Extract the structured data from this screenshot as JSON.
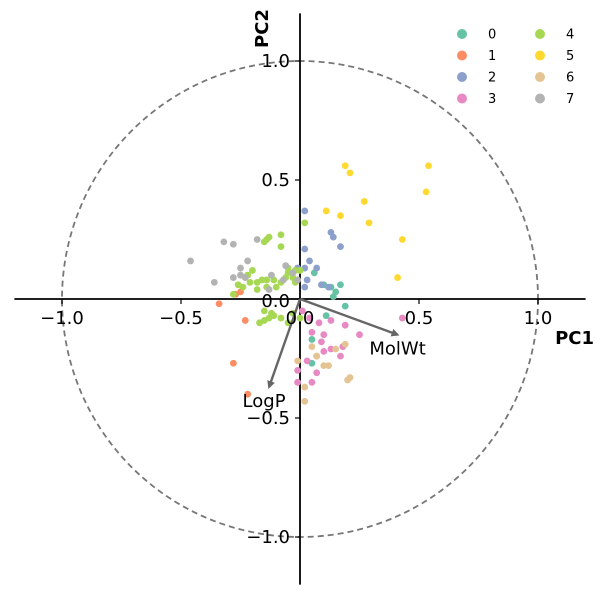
{
  "chart_data": {
    "type": "scatter",
    "xlabel": "PC1",
    "ylabel": "PC2",
    "xlim": [
      -1.2,
      1.2
    ],
    "ylim": [
      -1.2,
      1.2
    ],
    "xticks": [
      -1.0,
      -0.5,
      0.0,
      0.5,
      1.0
    ],
    "yticks": [
      -1.0,
      -0.5,
      0.0,
      0.5,
      1.0
    ],
    "x_tick_labels": [
      "−1.0",
      "−0.5",
      "0.0",
      "0.5",
      "1.0"
    ],
    "y_tick_labels": [
      "−1.0",
      "−0.5",
      "0.0",
      "0.5",
      "1.0"
    ],
    "unit_circle": true,
    "grid": false,
    "legend_position": "top-right",
    "loadings": [
      {
        "name": "MolWt",
        "x": 0.41,
        "y": -0.15
      },
      {
        "name": "LogP",
        "x": -0.13,
        "y": -0.37
      }
    ],
    "series": [
      {
        "name": "0",
        "color": "#66c2a5",
        "points": [
          [
            0.17,
            0.06
          ],
          [
            0.13,
            0.05
          ],
          [
            0.15,
            0.03
          ],
          [
            0.1,
            0.06
          ],
          [
            0.06,
            0.11
          ],
          [
            0.14,
            0.01
          ],
          [
            0.19,
            -0.03
          ],
          [
            0.05,
            -0.17
          ],
          [
            0.05,
            -0.27
          ],
          [
            0.11,
            -0.07
          ]
        ]
      },
      {
        "name": "1",
        "color": "#fc8d62",
        "points": [
          [
            -0.34,
            -0.02
          ],
          [
            -0.27,
            0.02
          ],
          [
            -0.25,
            0.03
          ],
          [
            -0.23,
            -0.09
          ],
          [
            -0.28,
            -0.27
          ],
          [
            -0.22,
            -0.4
          ]
        ]
      },
      {
        "name": "2",
        "color": "#8da0cb",
        "points": [
          [
            0.02,
            0.37
          ],
          [
            0.02,
            0.21
          ],
          [
            0.04,
            0.16
          ],
          [
            0.07,
            0.13
          ],
          [
            0.09,
            0.06
          ],
          [
            0.12,
            0.05
          ],
          [
            0.13,
            0.28
          ],
          [
            0.14,
            0.26
          ],
          [
            0.17,
            0.22
          ],
          [
            0.02,
            0.13
          ],
          [
            0.03,
            0.08
          ],
          [
            -0.01,
            0.13
          ],
          [
            0.02,
            0.05
          ]
        ]
      },
      {
        "name": "3",
        "color": "#e78ac3",
        "points": [
          [
            0.01,
            -0.05
          ],
          [
            0.04,
            -0.08
          ],
          [
            0.08,
            -0.1
          ],
          [
            0.13,
            -0.09
          ],
          [
            0.19,
            -0.11
          ],
          [
            0.05,
            -0.14
          ],
          [
            0.1,
            -0.15
          ],
          [
            0.1,
            -0.22
          ],
          [
            0.13,
            -0.21
          ],
          [
            0.17,
            -0.24
          ],
          [
            0.18,
            -0.2
          ],
          [
            0.03,
            -0.26
          ],
          [
            -0.01,
            -0.3
          ],
          [
            0.07,
            -0.31
          ],
          [
            -0.01,
            -0.35
          ],
          [
            0.05,
            -0.35
          ],
          [
            0.25,
            -0.15
          ],
          [
            0.43,
            -0.08
          ],
          [
            0.07,
            -0.24
          ],
          [
            0.09,
            -0.18
          ]
        ]
      },
      {
        "name": "4",
        "color": "#a6d854",
        "points": [
          [
            -0.15,
            0.24
          ],
          [
            -0.14,
            0.25
          ],
          [
            -0.13,
            0.26
          ],
          [
            -0.08,
            0.27
          ],
          [
            -0.08,
            0.22
          ],
          [
            -0.05,
            0.13
          ],
          [
            -0.05,
            0.11
          ],
          [
            -0.02,
            0.12
          ],
          [
            0.0,
            0.12
          ],
          [
            0.02,
            0.32
          ],
          [
            -0.02,
            0.07
          ],
          [
            -0.06,
            0.09
          ],
          [
            -0.11,
            0.08
          ],
          [
            -0.14,
            0.08
          ],
          [
            -0.16,
            0.08
          ],
          [
            -0.18,
            0.07
          ],
          [
            -0.21,
            0.07
          ],
          [
            -0.26,
            0.06
          ],
          [
            -0.28,
            0.02
          ],
          [
            -0.24,
            0.05
          ],
          [
            -0.18,
            0.04
          ],
          [
            -0.14,
            0.05
          ],
          [
            -0.1,
            0.05
          ],
          [
            -0.08,
            0.07
          ],
          [
            -0.03,
            0.09
          ],
          [
            -0.15,
            -0.05
          ],
          [
            -0.12,
            -0.06
          ],
          [
            -0.08,
            -0.08
          ],
          [
            -0.05,
            -0.1
          ],
          [
            -0.17,
            -0.1
          ],
          [
            -0.15,
            -0.09
          ],
          [
            -0.13,
            -0.08
          ],
          [
            -0.11,
            -0.07
          ],
          [
            -0.03,
            -0.06
          ],
          [
            0.0,
            -0.08
          ],
          [
            -0.22,
            0.1
          ],
          [
            -0.2,
            0.12
          ]
        ]
      },
      {
        "name": "5",
        "color": "#ffd92f",
        "points": [
          [
            0.19,
            0.56
          ],
          [
            0.21,
            0.53
          ],
          [
            0.27,
            0.41
          ],
          [
            0.54,
            0.56
          ],
          [
            0.53,
            0.45
          ],
          [
            0.43,
            0.25
          ],
          [
            0.29,
            0.32
          ],
          [
            0.17,
            0.35
          ],
          [
            0.11,
            0.37
          ],
          [
            0.41,
            0.09
          ]
        ]
      },
      {
        "name": "6",
        "color": "#e5c494",
        "points": [
          [
            0.07,
            -0.24
          ],
          [
            0.12,
            -0.28
          ],
          [
            0.15,
            -0.21
          ],
          [
            0.19,
            -0.19
          ],
          [
            0.21,
            -0.33
          ],
          [
            0.2,
            -0.34
          ],
          [
            0.02,
            -0.37
          ],
          [
            0.02,
            -0.43
          ],
          [
            -0.01,
            -0.26
          ],
          [
            0.1,
            -0.28
          ],
          [
            0.05,
            -0.2
          ]
        ]
      },
      {
        "name": "7",
        "color": "#b3b3b3",
        "points": [
          [
            -0.46,
            0.16
          ],
          [
            -0.36,
            0.07
          ],
          [
            -0.32,
            0.24
          ],
          [
            -0.28,
            0.23
          ],
          [
            -0.25,
            0.1
          ],
          [
            -0.22,
            0.16
          ],
          [
            -0.18,
            0.25
          ],
          [
            -0.12,
            0.1
          ],
          [
            -0.07,
            0.08
          ],
          [
            -0.06,
            0.14
          ],
          [
            -0.03,
            0.11
          ],
          [
            -0.25,
            0.13
          ],
          [
            -0.28,
            0.09
          ],
          [
            -0.23,
            0.09
          ],
          [
            -0.13,
            0.04
          ],
          [
            -0.01,
            0.08
          ]
        ]
      }
    ]
  }
}
